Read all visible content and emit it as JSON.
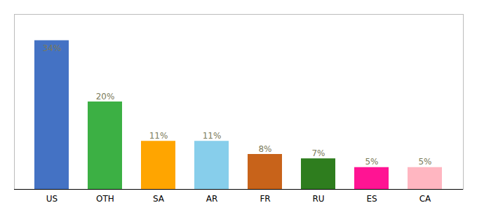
{
  "chart_data": {
    "type": "bar",
    "categories": [
      "US",
      "OTH",
      "SA",
      "AR",
      "FR",
      "RU",
      "ES",
      "CA"
    ],
    "values": [
      34,
      20,
      11,
      11,
      8,
      7,
      5,
      5
    ],
    "value_labels": [
      "34%",
      "20%",
      "11%",
      "11%",
      "8%",
      "7%",
      "5%",
      "5%"
    ],
    "colors": [
      "#4472C4",
      "#3CB044",
      "#FFA500",
      "#87CEEB",
      "#C8631A",
      "#2E7D1E",
      "#FF1493",
      "#FFB6C1"
    ],
    "ylim": [
      0,
      40
    ],
    "data_labels": true,
    "grid": false,
    "tick_labels": "x"
  }
}
